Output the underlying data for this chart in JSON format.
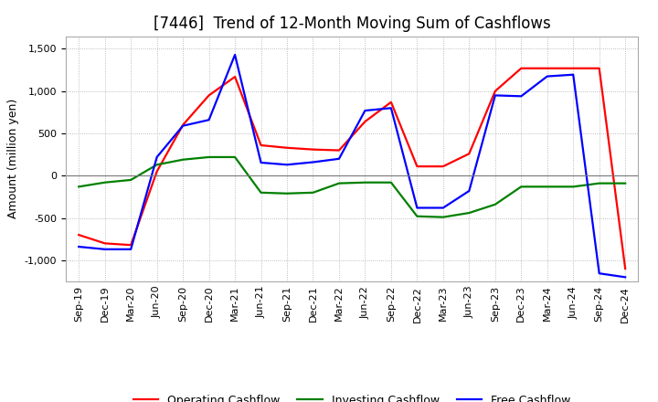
{
  "title": "[7446]  Trend of 12-Month Moving Sum of Cashflows",
  "ylabel": "Amount (million yen)",
  "ylim": [
    -1250,
    1650
  ],
  "yticks": [
    -1000,
    -500,
    0,
    500,
    1000,
    1500
  ],
  "x_labels": [
    "Sep-19",
    "Dec-19",
    "Mar-20",
    "Jun-20",
    "Sep-20",
    "Dec-20",
    "Mar-21",
    "Jun-21",
    "Sep-21",
    "Dec-21",
    "Mar-22",
    "Jun-22",
    "Sep-22",
    "Dec-22",
    "Mar-23",
    "Jun-23",
    "Sep-23",
    "Dec-23",
    "Mar-24",
    "Jun-24",
    "Sep-24",
    "Dec-24"
  ],
  "operating": [
    -700,
    -800,
    -820,
    50,
    600,
    950,
    1170,
    360,
    330,
    310,
    300,
    640,
    870,
    110,
    110,
    260,
    1000,
    1270,
    1270,
    1270,
    1270,
    -1100
  ],
  "investing": [
    -130,
    -80,
    -50,
    130,
    190,
    220,
    220,
    -200,
    -210,
    -200,
    -90,
    -80,
    -80,
    -480,
    -490,
    -440,
    -340,
    -130,
    -130,
    -130,
    -90,
    -90
  ],
  "free": [
    -840,
    -870,
    -870,
    220,
    590,
    660,
    1430,
    155,
    130,
    160,
    200,
    770,
    800,
    -380,
    -380,
    -180,
    950,
    940,
    1175,
    1195,
    -1155,
    -1200
  ],
  "operating_color": "#ff0000",
  "investing_color": "#008000",
  "free_color": "#0000ff",
  "bg_color": "#ffffff",
  "plot_bg_color": "#ffffff",
  "grid_color": "#aaaaaa",
  "title_fontsize": 12,
  "label_fontsize": 9,
  "tick_fontsize": 8,
  "legend_fontsize": 9,
  "line_width": 1.6
}
